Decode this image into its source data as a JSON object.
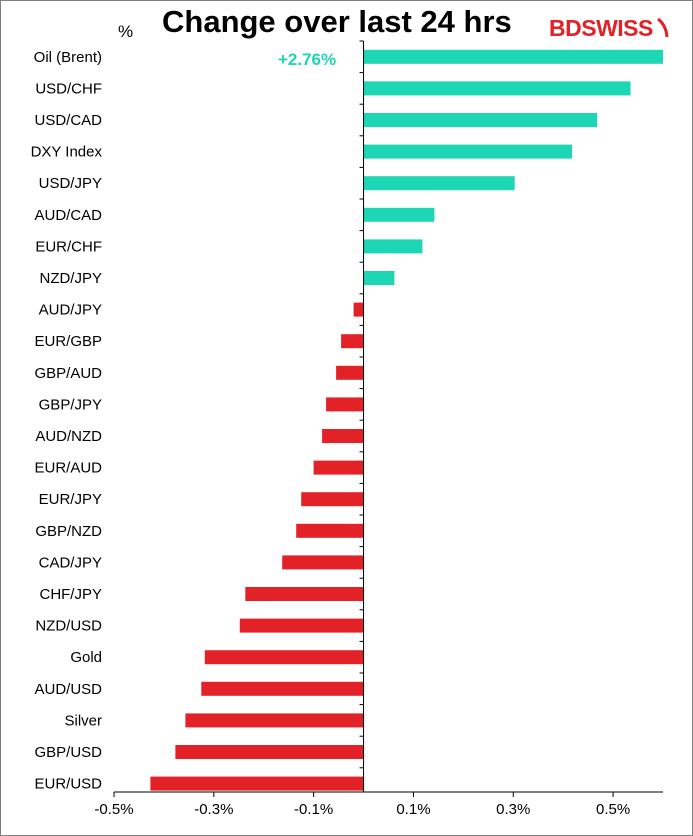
{
  "chart_data": {
    "type": "bar",
    "orientation": "horizontal",
    "title": "Change over last 24 hrs",
    "unit_label": "%",
    "annotation": "+2.76%",
    "colors": {
      "positive": "#1dd6b4",
      "negative": "#e32228"
    },
    "xlim": [
      -0.5,
      0.6
    ],
    "x_ticks": [
      "-0.5%",
      "-0.3%",
      "-0.1%",
      "0.1%",
      "0.3%",
      "0.5%"
    ],
    "x_tick_values": [
      -0.5,
      -0.3,
      -0.1,
      0.1,
      0.3,
      0.5
    ],
    "categories": [
      "Oil (Brent)",
      "USD/CHF",
      "USD/CAD",
      "DXY Index",
      "USD/JPY",
      "AUD/CAD",
      "EUR/CHF",
      "NZD/JPY",
      "AUD/JPY",
      "EUR/GBP",
      "GBP/AUD",
      "GBP/JPY",
      "AUD/NZD",
      "EUR/AUD",
      "EUR/JPY",
      "GBP/NZD",
      "CAD/JPY",
      "CHF/JPY",
      "NZD/USD",
      "Gold",
      "AUD/USD",
      "Silver",
      "GBP/USD",
      "EUR/USD"
    ],
    "values": [
      0.6,
      0.535,
      0.468,
      0.418,
      0.303,
      0.142,
      0.118,
      0.062,
      -0.02,
      -0.045,
      -0.055,
      -0.075,
      -0.083,
      -0.1,
      -0.125,
      -0.135,
      -0.163,
      -0.237,
      -0.248,
      -0.318,
      -0.325,
      -0.357,
      -0.377,
      -0.427
    ],
    "grid": false,
    "legend": "none"
  },
  "brand": {
    "part1": "BD",
    "part2": "SWISS"
  }
}
